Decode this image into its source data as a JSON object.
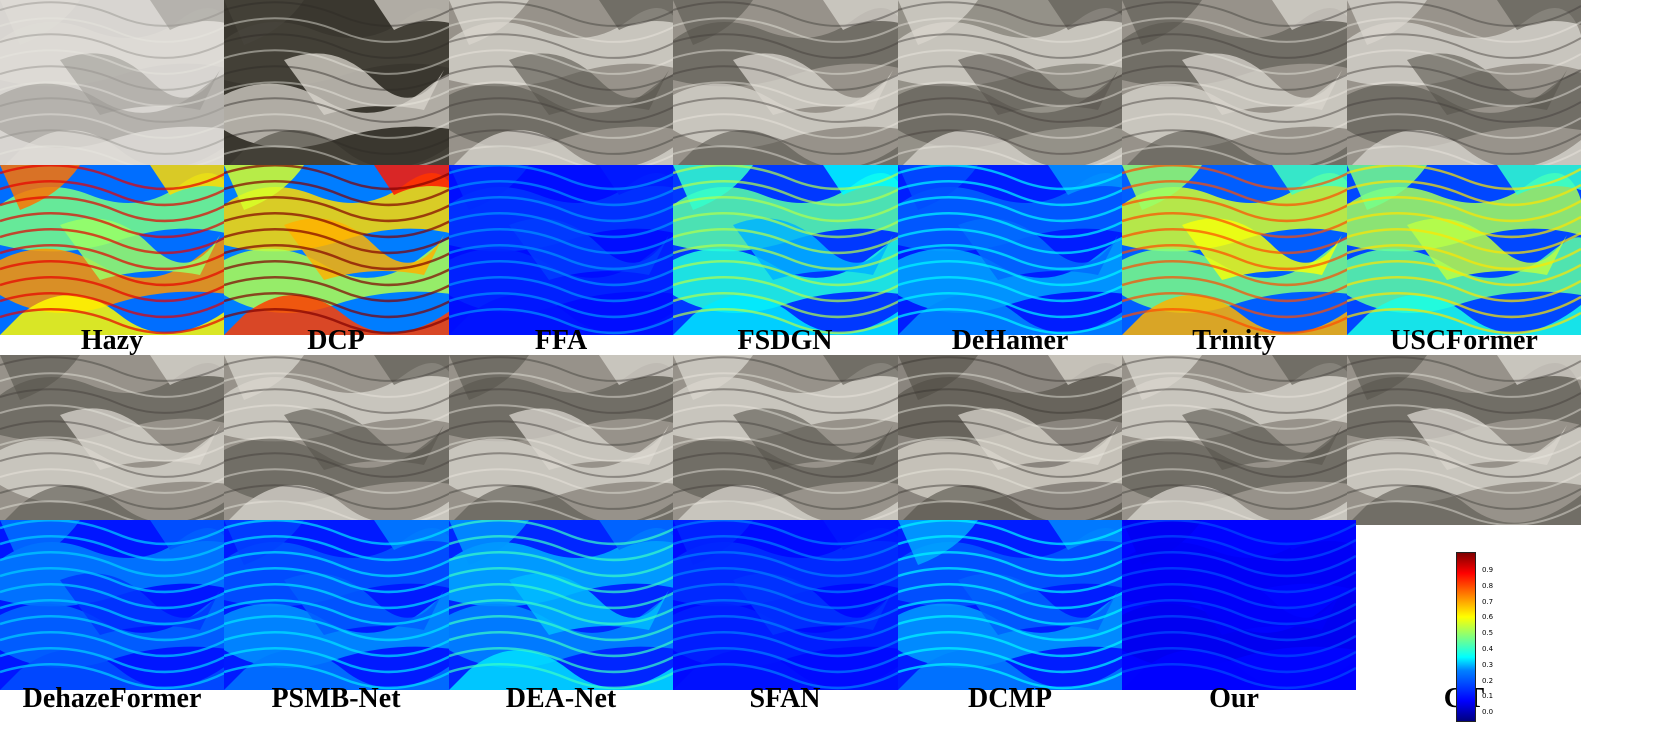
{
  "row1_labels": [
    "Hazy",
    "DCP",
    "FFA",
    "FSDGN",
    "DeHamer",
    "Trinity",
    "USCFormer"
  ],
  "row2_labels": [
    "DehazeFormer",
    "PSMB-Net",
    "DEA-Net",
    "SFAN",
    "DCMP",
    "Our",
    "GT"
  ],
  "colorbar_ticks": [
    "0.9",
    "0.8",
    "0.7",
    "0.6",
    "0.5",
    "0.4",
    "0.3",
    "0.2",
    "0.1",
    "0.0"
  ],
  "top_photos": [
    {
      "method": "Hazy",
      "haze": 0.55,
      "tint": "#c9c6c0"
    },
    {
      "method": "DCP",
      "haze": 0.0,
      "tint": "#3a372f"
    },
    {
      "method": "FFA",
      "haze": 0.1,
      "tint": "#8f8a80"
    },
    {
      "method": "FSDGN",
      "haze": 0.1,
      "tint": "#8f8a80"
    },
    {
      "method": "DeHamer",
      "haze": 0.1,
      "tint": "#8c887e"
    },
    {
      "method": "Trinity",
      "haze": 0.1,
      "tint": "#8f8a80"
    },
    {
      "method": "USCFormer",
      "haze": 0.1,
      "tint": "#908b82"
    }
  ],
  "top_errors": [
    {
      "method": "Hazy",
      "level": 0.75
    },
    {
      "method": "DCP",
      "level": 0.85
    },
    {
      "method": "FFA",
      "level": 0.12
    },
    {
      "method": "FSDGN",
      "level": 0.4
    },
    {
      "method": "DeHamer",
      "level": 0.22
    },
    {
      "method": "Trinity",
      "level": 0.65
    },
    {
      "method": "USCFormer",
      "level": 0.5
    }
  ],
  "bottom_photos": [
    {
      "method": "DehazeFormer",
      "haze": 0.1,
      "tint": "#8f8a80"
    },
    {
      "method": "PSMB-Net",
      "haze": 0.1,
      "tint": "#8f8a80"
    },
    {
      "method": "DEA-Net",
      "haze": 0.1,
      "tint": "#8f8a80"
    },
    {
      "method": "SFAN",
      "haze": 0.1,
      "tint": "#8f8a80"
    },
    {
      "method": "DCMP",
      "haze": 0.05,
      "tint": "#85807a"
    },
    {
      "method": "Our",
      "haze": 0.1,
      "tint": "#8f8a80"
    },
    {
      "method": "GT",
      "haze": 0.1,
      "tint": "#8f8a80"
    }
  ],
  "bottom_errors": [
    {
      "method": "DehazeFormer",
      "level": 0.18
    },
    {
      "method": "PSMB-Net",
      "level": 0.2
    },
    {
      "method": "DEA-Net",
      "level": 0.28
    },
    {
      "method": "SFAN",
      "level": 0.1
    },
    {
      "method": "DCMP",
      "level": 0.22
    },
    {
      "method": "Our",
      "level": 0.05
    }
  ]
}
